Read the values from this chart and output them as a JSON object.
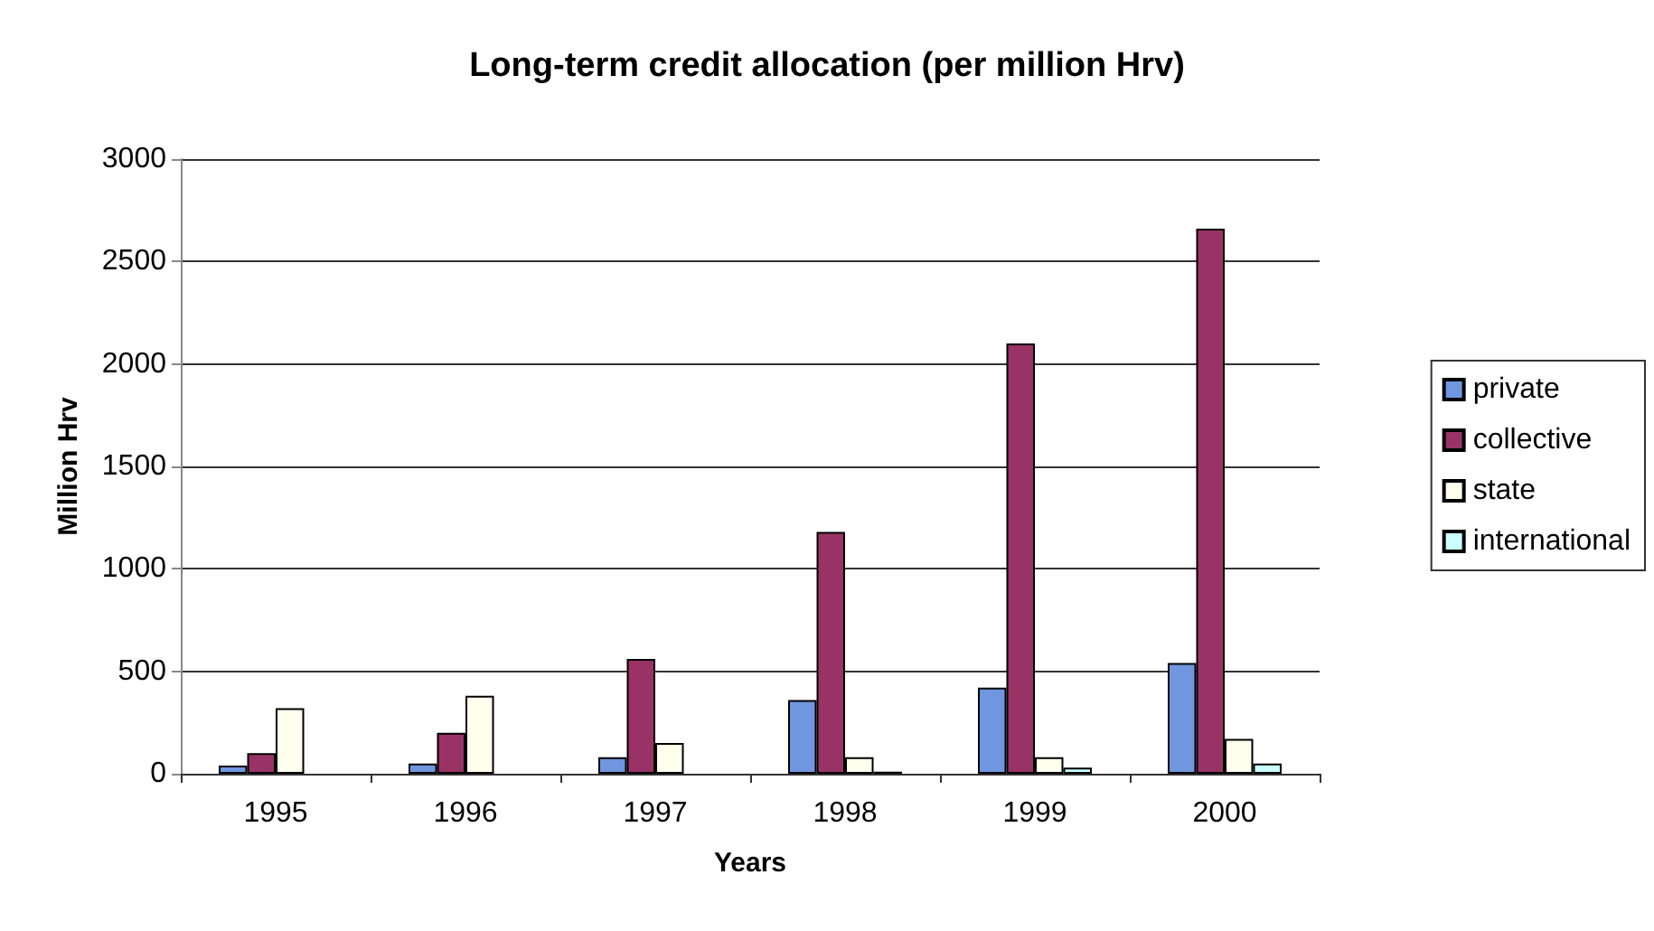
{
  "chart_data": {
    "type": "bar",
    "title": "Long-term credit allocation (per million Hrv)",
    "xlabel": "Years",
    "ylabel": "Million Hrv",
    "categories": [
      "1995",
      "1996",
      "1997",
      "1998",
      "1999",
      "2000"
    ],
    "series": [
      {
        "name": "private",
        "color": "#7096e0",
        "values": [
          40,
          50,
          80,
          360,
          420,
          540
        ]
      },
      {
        "name": "collective",
        "color": "#993366",
        "values": [
          100,
          200,
          560,
          1180,
          2100,
          2660
        ]
      },
      {
        "name": "state",
        "color": "#ffffee",
        "values": [
          320,
          380,
          150,
          80,
          80,
          170
        ]
      },
      {
        "name": "international",
        "color": "#ccffff",
        "values": [
          null,
          null,
          null,
          10,
          30,
          50
        ]
      }
    ],
    "ylim": [
      0,
      3000
    ],
    "yticks": [
      0,
      500,
      1000,
      1500,
      2000,
      2500,
      3000
    ],
    "grid": "y",
    "legend": "right"
  }
}
